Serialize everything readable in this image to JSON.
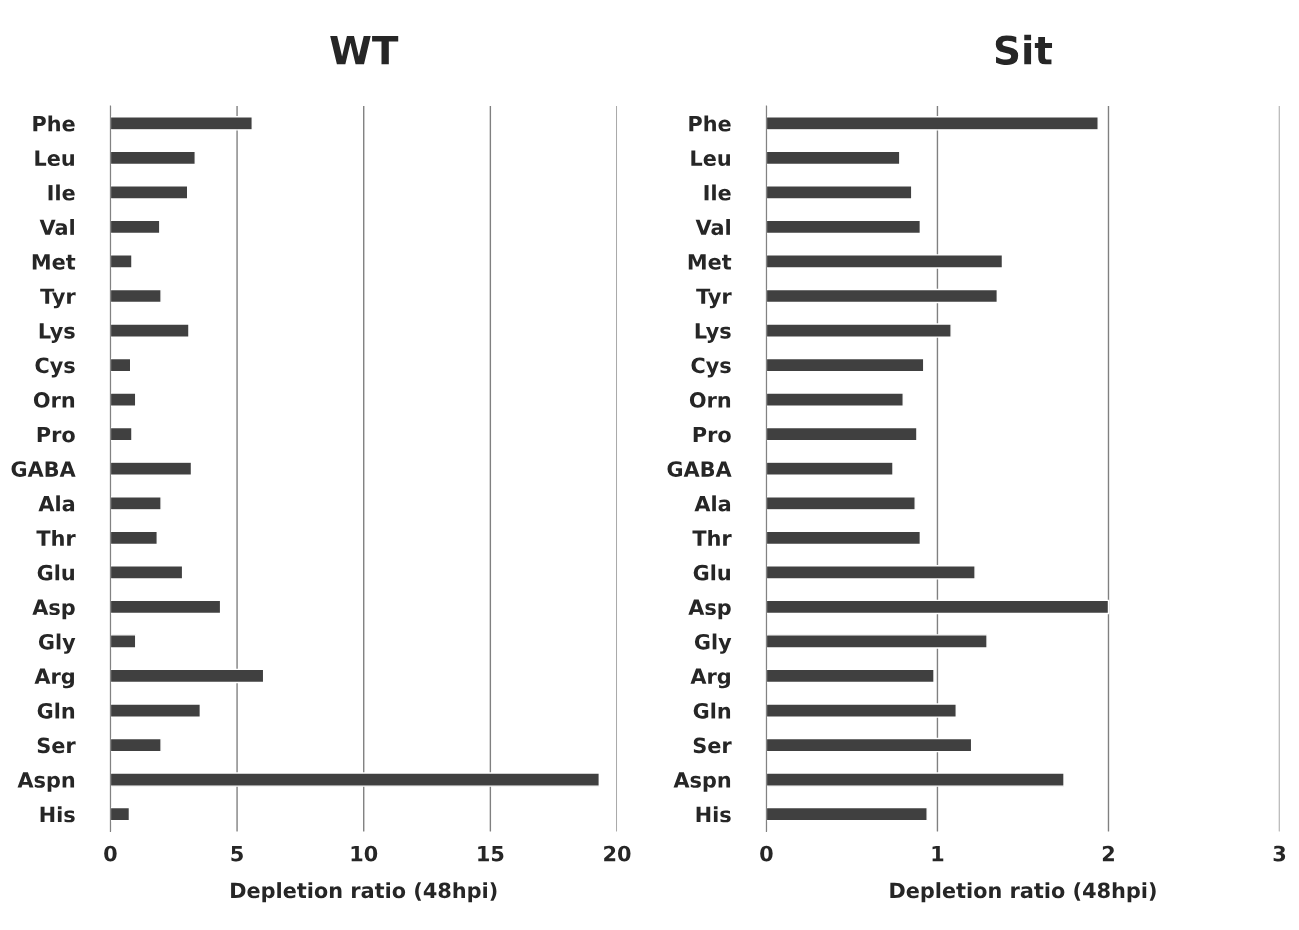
{
  "chart_data": [
    {
      "type": "bar",
      "orientation": "horizontal",
      "title": "WT",
      "xlabel": "Depletion ratio (48hpi)",
      "categories": [
        "Phe",
        "Leu",
        "Ile",
        "Val",
        "Met",
        "Tyr",
        "Lys",
        "Cys",
        "Orn",
        "Pro",
        "GABA",
        "Ala",
        "Thr",
        "Glu",
        "Asp",
        "Gly",
        "Arg",
        "Gln",
        "Ser",
        "Aspn",
        "His"
      ],
      "values": [
        5.6,
        3.35,
        3.05,
        1.95,
        0.85,
        2.0,
        3.1,
        0.8,
        1.0,
        0.85,
        3.2,
        2.0,
        1.85,
        2.85,
        4.35,
        1.0,
        6.05,
        3.55,
        2.0,
        19.3,
        0.75
      ],
      "color": "#404040",
      "xlim": [
        0,
        20
      ],
      "xticks": [
        0,
        5,
        10,
        15,
        20
      ],
      "grid": "x"
    },
    {
      "type": "bar",
      "orientation": "horizontal",
      "title": "Sit",
      "xlabel": "Depletion ratio (48hpi)",
      "categories": [
        "Phe",
        "Leu",
        "Ile",
        "Val",
        "Met",
        "Tyr",
        "Lys",
        "Cys",
        "Orn",
        "Pro",
        "GABA",
        "Ala",
        "Thr",
        "Glu",
        "Asp",
        "Gly",
        "Arg",
        "Gln",
        "Ser",
        "Aspn",
        "His"
      ],
      "values": [
        1.94,
        0.78,
        0.85,
        0.9,
        1.38,
        1.35,
        1.08,
        0.92,
        0.8,
        0.88,
        0.74,
        0.87,
        0.9,
        1.22,
        2.0,
        1.29,
        0.98,
        1.11,
        1.2,
        1.74,
        0.94
      ],
      "color": "#404040",
      "xlim": [
        0,
        3
      ],
      "xticks": [
        0,
        1,
        2,
        3
      ],
      "grid": "x"
    }
  ]
}
